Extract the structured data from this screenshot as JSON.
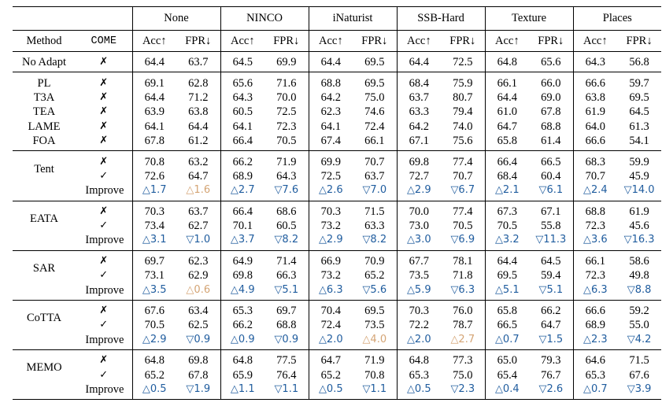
{
  "columns": {
    "method": "Method",
    "come": "COME",
    "datasets": [
      "None",
      "NINCO",
      "iNaturist",
      "SSB-Hard",
      "Texture",
      "Places"
    ],
    "acc": "Acc↑",
    "fpr": "FPR↓"
  },
  "marks": {
    "no": "✗",
    "yes": "✓"
  },
  "baseline": {
    "label": "No Adapt",
    "come": "no",
    "values": [
      "64.4",
      "63.7",
      "64.5",
      "69.9",
      "64.4",
      "69.5",
      "64.4",
      "72.5",
      "64.8",
      "65.6",
      "64.3",
      "56.8"
    ]
  },
  "others": [
    {
      "label": "PL",
      "come": "no",
      "values": [
        "69.1",
        "62.8",
        "65.6",
        "71.6",
        "68.8",
        "69.5",
        "68.4",
        "75.9",
        "66.1",
        "66.0",
        "66.6",
        "59.7"
      ]
    },
    {
      "label": "T3A",
      "come": "no",
      "values": [
        "64.4",
        "71.2",
        "64.3",
        "70.0",
        "64.2",
        "75.0",
        "63.7",
        "80.7",
        "64.4",
        "69.0",
        "63.8",
        "69.5"
      ]
    },
    {
      "label": "TEA",
      "come": "no",
      "values": [
        "63.9",
        "63.8",
        "60.5",
        "72.5",
        "62.3",
        "74.6",
        "63.3",
        "79.4",
        "61.0",
        "67.8",
        "61.9",
        "64.5"
      ]
    },
    {
      "label": "LAME",
      "come": "no",
      "values": [
        "64.1",
        "64.4",
        "64.1",
        "72.3",
        "64.1",
        "72.4",
        "64.2",
        "74.0",
        "64.7",
        "68.8",
        "64.0",
        "61.3"
      ]
    },
    {
      "label": "FOA",
      "come": "no",
      "values": [
        "67.8",
        "61.2",
        "66.4",
        "70.5",
        "67.4",
        "66.1",
        "67.1",
        "75.6",
        "65.8",
        "61.4",
        "66.6",
        "54.1"
      ]
    }
  ],
  "groups": [
    {
      "label": "Tent",
      "improve_label": "Improve",
      "without": [
        "70.8",
        "63.2",
        "66.2",
        "71.9",
        "69.9",
        "70.7",
        "69.8",
        "77.4",
        "66.4",
        "66.5",
        "68.3",
        "59.9"
      ],
      "with": [
        "72.6",
        "64.7",
        "68.9",
        "64.3",
        "72.5",
        "63.7",
        "72.7",
        "70.7",
        "68.4",
        "60.4",
        "70.7",
        "45.9"
      ],
      "improve": [
        {
          "text": "△1.7",
          "color": "blue"
        },
        {
          "text": "△1.6",
          "color": "orange"
        },
        {
          "text": "△2.7",
          "color": "blue"
        },
        {
          "text": "▽7.6",
          "color": "blue"
        },
        {
          "text": "△2.6",
          "color": "blue"
        },
        {
          "text": "▽7.0",
          "color": "blue"
        },
        {
          "text": "△2.9",
          "color": "blue"
        },
        {
          "text": "▽6.7",
          "color": "blue"
        },
        {
          "text": "△2.1",
          "color": "blue"
        },
        {
          "text": "▽6.1",
          "color": "blue"
        },
        {
          "text": "△2.4",
          "color": "blue"
        },
        {
          "text": "▽14.0",
          "color": "blue"
        }
      ]
    },
    {
      "label": "EATA",
      "improve_label": "Improve",
      "without": [
        "70.3",
        "63.7",
        "66.4",
        "68.6",
        "70.3",
        "71.5",
        "70.0",
        "77.4",
        "67.3",
        "67.1",
        "68.8",
        "61.9"
      ],
      "with": [
        "73.4",
        "62.7",
        "70.1",
        "60.5",
        "73.2",
        "63.3",
        "73.0",
        "70.5",
        "70.5",
        "55.8",
        "72.3",
        "45.6"
      ],
      "improve": [
        {
          "text": "△3.1",
          "color": "blue"
        },
        {
          "text": "▽1.0",
          "color": "blue"
        },
        {
          "text": "△3.7",
          "color": "blue"
        },
        {
          "text": "▽8.2",
          "color": "blue"
        },
        {
          "text": "△2.9",
          "color": "blue"
        },
        {
          "text": "▽8.2",
          "color": "blue"
        },
        {
          "text": "△3.0",
          "color": "blue"
        },
        {
          "text": "▽6.9",
          "color": "blue"
        },
        {
          "text": "△3.2",
          "color": "blue"
        },
        {
          "text": "▽11.3",
          "color": "blue"
        },
        {
          "text": "△3.6",
          "color": "blue"
        },
        {
          "text": "▽16.3",
          "color": "blue"
        }
      ]
    },
    {
      "label": "SAR",
      "improve_label": "Improve",
      "without": [
        "69.7",
        "62.3",
        "64.9",
        "71.4",
        "66.9",
        "70.9",
        "67.7",
        "78.1",
        "64.4",
        "64.5",
        "66.1",
        "58.6"
      ],
      "with": [
        "73.1",
        "62.9",
        "69.8",
        "66.3",
        "73.2",
        "65.2",
        "73.5",
        "71.8",
        "69.5",
        "59.4",
        "72.3",
        "49.8"
      ],
      "improve": [
        {
          "text": "△3.5",
          "color": "blue"
        },
        {
          "text": "△0.6",
          "color": "orange"
        },
        {
          "text": "△4.9",
          "color": "blue"
        },
        {
          "text": "▽5.1",
          "color": "blue"
        },
        {
          "text": "△6.3",
          "color": "blue"
        },
        {
          "text": "▽5.6",
          "color": "blue"
        },
        {
          "text": "△5.9",
          "color": "blue"
        },
        {
          "text": "▽6.3",
          "color": "blue"
        },
        {
          "text": "△5.1",
          "color": "blue"
        },
        {
          "text": "▽5.1",
          "color": "blue"
        },
        {
          "text": "△6.3",
          "color": "blue"
        },
        {
          "text": "▽8.8",
          "color": "blue"
        }
      ]
    },
    {
      "label": "CoTTA",
      "improve_label": "Improve",
      "without": [
        "67.6",
        "63.4",
        "65.3",
        "69.7",
        "70.4",
        "69.5",
        "70.3",
        "76.0",
        "65.8",
        "66.2",
        "66.6",
        "59.2"
      ],
      "with": [
        "70.5",
        "62.5",
        "66.2",
        "68.8",
        "72.4",
        "73.5",
        "72.2",
        "78.7",
        "66.5",
        "64.7",
        "68.9",
        "55.0"
      ],
      "improve": [
        {
          "text": "△2.9",
          "color": "blue"
        },
        {
          "text": "▽0.9",
          "color": "blue"
        },
        {
          "text": "△0.9",
          "color": "blue"
        },
        {
          "text": "▽0.9",
          "color": "blue"
        },
        {
          "text": "△2.0",
          "color": "blue"
        },
        {
          "text": "△4.0",
          "color": "orange"
        },
        {
          "text": "△2.0",
          "color": "blue"
        },
        {
          "text": "△2.7",
          "color": "orange"
        },
        {
          "text": "△0.7",
          "color": "blue"
        },
        {
          "text": "▽1.5",
          "color": "blue"
        },
        {
          "text": "△2.3",
          "color": "blue"
        },
        {
          "text": "▽4.2",
          "color": "blue"
        }
      ]
    },
    {
      "label": "MEMO",
      "improve_label": "Improve",
      "without": [
        "64.8",
        "69.8",
        "64.8",
        "77.5",
        "64.7",
        "71.9",
        "64.8",
        "77.3",
        "65.0",
        "79.3",
        "64.6",
        "71.5"
      ],
      "with": [
        "65.2",
        "67.8",
        "65.9",
        "76.4",
        "65.2",
        "70.8",
        "65.3",
        "75.0",
        "65.4",
        "76.7",
        "65.3",
        "67.6"
      ],
      "improve": [
        {
          "text": "△0.5",
          "color": "blue"
        },
        {
          "text": "▽1.9",
          "color": "blue"
        },
        {
          "text": "△1.1",
          "color": "blue"
        },
        {
          "text": "▽1.1",
          "color": "blue"
        },
        {
          "text": "△0.5",
          "color": "blue"
        },
        {
          "text": "▽1.1",
          "color": "blue"
        },
        {
          "text": "△0.5",
          "color": "blue"
        },
        {
          "text": "▽2.3",
          "color": "blue"
        },
        {
          "text": "△0.4",
          "color": "blue"
        },
        {
          "text": "▽2.6",
          "color": "blue"
        },
        {
          "text": "△0.7",
          "color": "blue"
        },
        {
          "text": "▽3.9",
          "color": "blue"
        }
      ]
    }
  ]
}
